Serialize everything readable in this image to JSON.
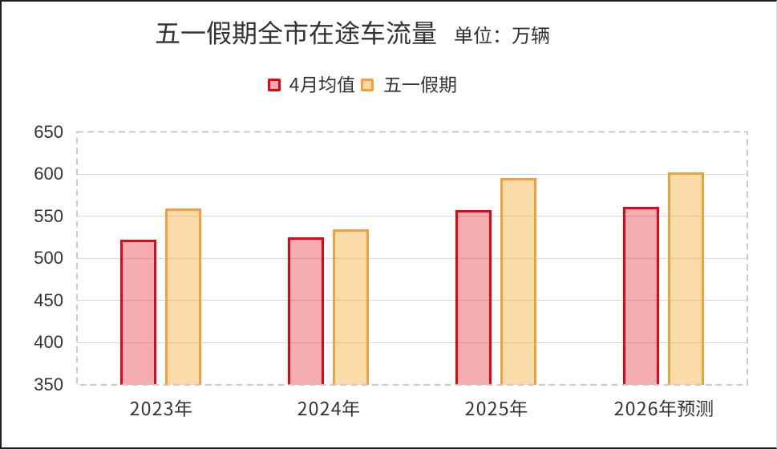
{
  "frame": {
    "background": "#ffffff",
    "border_color": "#1f1f1f"
  },
  "header": {
    "title": "五一假期全市在途车流量",
    "unit_label": "单位：万辆"
  },
  "legend": {
    "items": [
      {
        "label": "4月均值",
        "border_color": "#e00714",
        "fill_color": "rgba(225,15,35,0.35)"
      },
      {
        "label": "五一假期",
        "border_color": "#f0a03c",
        "fill_color": "rgba(246,170,45,0.42)"
      }
    ]
  },
  "axes": {
    "y_ticks": [
      "650",
      "600",
      "550",
      "500",
      "450",
      "400",
      "350"
    ],
    "x_labels": [
      "2023年",
      "2024年",
      "2025年",
      "2026年预测"
    ],
    "text_color": "#333333",
    "grid_color": "#d6d6d6",
    "plot_border_color": "#c9c9c9"
  },
  "chart_data": {
    "type": "bar",
    "title": "五一假期全市在途车流量",
    "unit": "万辆",
    "categories": [
      "2023年",
      "2024年",
      "2025年",
      "2026年预测"
    ],
    "series": [
      {
        "name": "4月均值",
        "values": [
          522,
          525,
          557,
          561
        ],
        "border_color": "#e00714",
        "fill_color": "rgba(225,15,35,0.35)"
      },
      {
        "name": "五一假期",
        "values": [
          559,
          534,
          595,
          602
        ],
        "border_color": "#f0a03c",
        "fill_color": "rgba(246,170,45,0.42)"
      }
    ],
    "ylim": [
      350,
      650
    ],
    "ytick_step": 50,
    "grid": true,
    "legend_position": "top",
    "bar_border_width": 3
  }
}
